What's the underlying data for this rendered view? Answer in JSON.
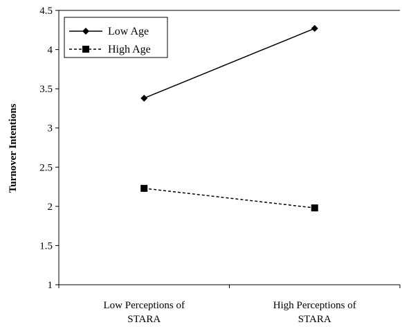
{
  "chart_data": {
    "type": "line",
    "xlabel": "",
    "ylabel": "Turnover Intentions",
    "categories": [
      [
        "Low Perceptions of",
        "STARA"
      ],
      [
        "High Perceptions of",
        "STARA"
      ]
    ],
    "ylim": [
      1,
      4.5
    ],
    "yticks": [
      "1",
      "1.5",
      "2",
      "2.5",
      "3",
      "3.5",
      "4",
      "4.5"
    ],
    "grid": false,
    "legend_position": "top-left",
    "series": [
      {
        "name": "Low Age",
        "values": [
          3.38,
          4.27
        ],
        "marker": "diamond",
        "line": "solid",
        "color": "#000000"
      },
      {
        "name": "High Age",
        "values": [
          2.23,
          1.98
        ],
        "marker": "square",
        "line": "dashed",
        "color": "#000000"
      }
    ]
  }
}
